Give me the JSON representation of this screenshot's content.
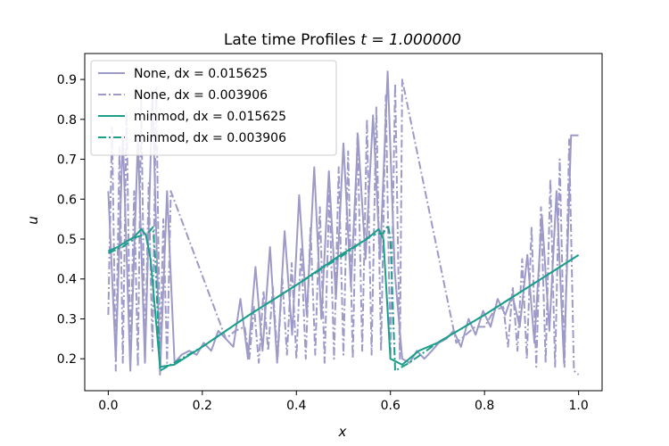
{
  "chart_data": {
    "type": "line",
    "title_text": "Late time Profiles ",
    "title_math": "t = 1.000000",
    "xlabel": "x",
    "ylabel": "u",
    "xlim": [
      -0.05,
      1.05
    ],
    "ylim": [
      0.12,
      0.965
    ],
    "xticks": [
      0.0,
      0.2,
      0.4,
      0.6,
      0.8,
      1.0
    ],
    "xtick_labels": [
      "0.0",
      "0.2",
      "0.4",
      "0.6",
      "0.8",
      "1.0"
    ],
    "yticks": [
      0.2,
      0.3,
      0.4,
      0.5,
      0.6,
      0.7,
      0.8,
      0.9
    ],
    "ytick_labels": [
      "0.2",
      "0.3",
      "0.4",
      "0.5",
      "0.6",
      "0.7",
      "0.8",
      "0.9"
    ],
    "grid": false,
    "legend_position": "top-left",
    "series": [
      {
        "name": "None, dx = 0.015625",
        "color": "#9e9ac8",
        "dash": "solid",
        "x": [
          0.0,
          0.016,
          0.031,
          0.047,
          0.063,
          0.078,
          0.094,
          0.11,
          0.125,
          0.141,
          0.156,
          0.172,
          0.188,
          0.203,
          0.219,
          0.234,
          0.25,
          0.266,
          0.281,
          0.297,
          0.313,
          0.328,
          0.344,
          0.359,
          0.375,
          0.391,
          0.406,
          0.422,
          0.438,
          0.453,
          0.469,
          0.484,
          0.5,
          0.516,
          0.531,
          0.547,
          0.563,
          0.578,
          0.594,
          0.609,
          0.625,
          0.641,
          0.656,
          0.672,
          0.688,
          0.703,
          0.719,
          0.734,
          0.75,
          0.766,
          0.781,
          0.797,
          0.813,
          0.828,
          0.844,
          0.859,
          0.875,
          0.891,
          0.906,
          0.922,
          0.938,
          0.953,
          0.969,
          0.984,
          1.0
        ],
        "y": [
          0.62,
          0.2,
          0.76,
          0.17,
          0.75,
          0.19,
          0.87,
          0.16,
          0.62,
          0.19,
          0.21,
          0.22,
          0.21,
          0.24,
          0.22,
          0.27,
          0.25,
          0.23,
          0.35,
          0.2,
          0.43,
          0.22,
          0.48,
          0.19,
          0.52,
          0.26,
          0.61,
          0.31,
          0.68,
          0.3,
          0.67,
          0.35,
          0.74,
          0.38,
          0.76,
          0.45,
          0.81,
          0.45,
          0.92,
          0.42,
          0.2,
          0.19,
          0.22,
          0.2,
          0.22,
          0.24,
          0.25,
          0.27,
          0.23,
          0.3,
          0.26,
          0.32,
          0.28,
          0.35,
          0.31,
          0.36,
          0.28,
          0.46,
          0.24,
          0.56,
          0.27,
          0.62,
          0.19,
          0.76,
          0.76
        ]
      },
      {
        "name": "None, dx = 0.003906",
        "color": "#9e9ac8",
        "dash": "dashdot",
        "x": [
          0.0,
          0.008,
          0.016,
          0.024,
          0.031,
          0.039,
          0.047,
          0.055,
          0.063,
          0.07,
          0.078,
          0.086,
          0.094,
          0.102,
          0.11,
          0.117,
          0.125,
          0.133,
          0.25,
          0.27,
          0.29,
          0.3,
          0.31,
          0.32,
          0.33,
          0.34,
          0.35,
          0.36,
          0.37,
          0.38,
          0.39,
          0.4,
          0.41,
          0.42,
          0.43,
          0.44,
          0.45,
          0.46,
          0.47,
          0.48,
          0.49,
          0.5,
          0.51,
          0.52,
          0.53,
          0.54,
          0.55,
          0.56,
          0.57,
          0.58,
          0.59,
          0.6,
          0.61,
          0.62,
          0.625,
          0.74,
          0.76,
          0.78,
          0.8,
          0.82,
          0.84,
          0.85,
          0.86,
          0.87,
          0.88,
          0.89,
          0.9,
          0.91,
          0.92,
          0.93,
          0.94,
          0.95,
          0.96,
          0.97,
          0.98,
          0.99,
          1.0
        ],
        "y": [
          0.31,
          0.78,
          0.17,
          0.73,
          0.19,
          0.82,
          0.2,
          0.62,
          0.18,
          0.85,
          0.19,
          0.64,
          0.22,
          0.88,
          0.2,
          0.55,
          0.19,
          0.62,
          0.25,
          0.27,
          0.28,
          0.2,
          0.33,
          0.19,
          0.37,
          0.22,
          0.38,
          0.2,
          0.4,
          0.21,
          0.44,
          0.2,
          0.48,
          0.2,
          0.53,
          0.21,
          0.58,
          0.19,
          0.62,
          0.2,
          0.68,
          0.21,
          0.72,
          0.2,
          0.77,
          0.22,
          0.8,
          0.21,
          0.83,
          0.22,
          0.86,
          0.2,
          0.89,
          0.2,
          0.9,
          0.24,
          0.26,
          0.28,
          0.28,
          0.32,
          0.33,
          0.23,
          0.38,
          0.22,
          0.45,
          0.2,
          0.53,
          0.18,
          0.58,
          0.19,
          0.65,
          0.18,
          0.7,
          0.18,
          0.75,
          0.17,
          0.16
        ]
      },
      {
        "name": "minmod, dx = 0.015625",
        "color": "#1b9e8a",
        "dash": "solid",
        "x": [
          0.0,
          0.02,
          0.04,
          0.055,
          0.07,
          0.08,
          0.09,
          0.11,
          0.14,
          0.2,
          0.3,
          0.4,
          0.5,
          0.55,
          0.575,
          0.585,
          0.6,
          0.625,
          0.66,
          0.7,
          0.8,
          0.9,
          1.0
        ],
        "y": [
          0.47,
          0.48,
          0.495,
          0.505,
          0.525,
          0.51,
          0.45,
          0.18,
          0.185,
          0.23,
          0.31,
          0.385,
          0.465,
          0.5,
          0.525,
          0.5,
          0.2,
          0.185,
          0.22,
          0.24,
          0.31,
          0.385,
          0.46
        ]
      },
      {
        "name": "minmod, dx = 0.003906",
        "color": "#1b9e8a",
        "dash": "dashdot",
        "x": [
          0.0,
          0.03,
          0.06,
          0.085,
          0.095,
          0.1,
          0.11,
          0.14,
          0.2,
          0.3,
          0.4,
          0.5,
          0.56,
          0.585,
          0.595,
          0.6,
          0.61,
          0.64,
          0.7,
          0.8,
          0.9,
          1.0
        ],
        "y": [
          0.465,
          0.48,
          0.505,
          0.515,
          0.53,
          0.45,
          0.17,
          0.19,
          0.23,
          0.31,
          0.385,
          0.46,
          0.51,
          0.515,
          0.535,
          0.5,
          0.17,
          0.19,
          0.24,
          0.31,
          0.385,
          0.46
        ]
      }
    ]
  }
}
